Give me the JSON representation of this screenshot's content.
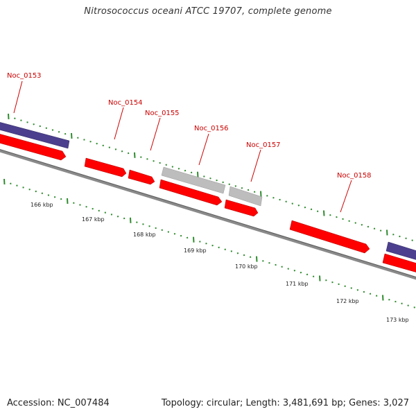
{
  "title": "Nitrosococcus oceani ATCC 19707, complete genome",
  "footer": {
    "accession": "Accession: NC_007484",
    "stats": "Topology: circular; Length: 3,481,691 bp; Genes: 3,027"
  },
  "colors": {
    "forward_gene": "#ff0000",
    "reverse_gene": "#4b3f8e",
    "unknown_gene": "#bdbdbd",
    "backbone": "#7a7a7a",
    "tick": "#2e8b2e",
    "label": "#cc0000"
  },
  "gene_labels": [
    "Noc_0153",
    "Noc_0154",
    "Noc_0155",
    "Noc_0156",
    "Noc_0157",
    "Noc_0158"
  ],
  "kbp_labels": [
    "166 kbp",
    "167 kbp",
    "168 kbp",
    "169 kbp",
    "170 kbp",
    "171 kbp",
    "172 kbp",
    "173 kbp"
  ]
}
